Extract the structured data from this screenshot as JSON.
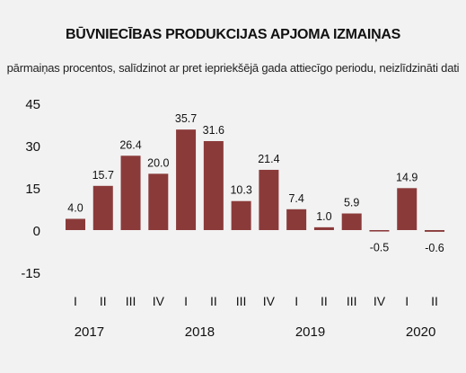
{
  "chart_data": {
    "type": "bar",
    "title": "BŪVNIECĪBAS PRODUKCIJAS APJOMA IZMAIŅAS",
    "subtitle": "pārmaiņas procentos, salīdzinot ar pret iepriekšējā gada attiecīgo periodu, neizlīdzināti dati",
    "xlabel": "",
    "ylabel": "",
    "categories": [
      "I",
      "II",
      "III",
      "IV",
      "I",
      "II",
      "III",
      "IV",
      "I",
      "II",
      "III",
      "IV",
      "I",
      "II"
    ],
    "years": [
      {
        "label": "2017",
        "first_index": 0,
        "last_index": 3
      },
      {
        "label": "2018",
        "first_index": 4,
        "last_index": 7
      },
      {
        "label": "2019",
        "first_index": 8,
        "last_index": 11
      },
      {
        "label": "2020",
        "first_index": 12,
        "last_index": 13
      }
    ],
    "values": [
      4.0,
      15.7,
      26.4,
      20.0,
      35.7,
      31.6,
      10.3,
      21.4,
      7.4,
      1.0,
      5.9,
      -0.5,
      14.9,
      -0.6
    ],
    "value_labels": [
      "4.0",
      "15.7",
      "26.4",
      "20.0",
      "35.7",
      "31.6",
      "10.3",
      "21.4",
      "7.4",
      "1.0",
      "5.9",
      "-0.5",
      "14.9",
      "-0.6"
    ],
    "yticks": [
      -15,
      0,
      15,
      30,
      45
    ],
    "ylim": [
      -15,
      45
    ],
    "grid": false,
    "legend": "none",
    "bar_color": "#8b3a3a",
    "background_color": "#f2f2f2"
  }
}
